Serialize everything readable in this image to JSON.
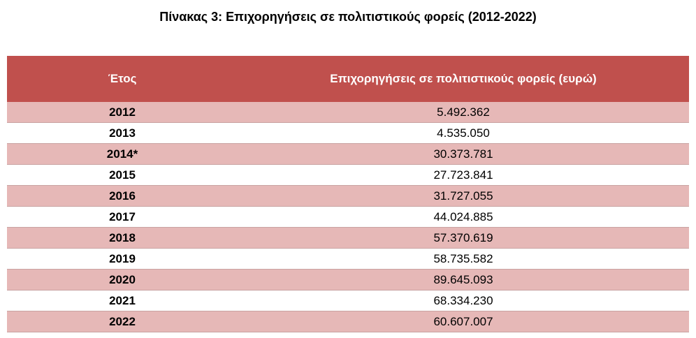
{
  "title": "Πίνακας 3: Επιχορηγήσεις σε πολιτιστικούς φορείς (2012-2022)",
  "table": {
    "header": [
      "Έτος",
      "Επιχορηγήσεις σε πολιτιστικούς φορείς (ευρώ)"
    ],
    "rows": [
      [
        "2012",
        "5.492.362"
      ],
      [
        "2013",
        "4.535.050"
      ],
      [
        "2014*",
        "30.373.781"
      ],
      [
        "2015",
        "27.723.841"
      ],
      [
        "2016",
        "31.727.055"
      ],
      [
        "2017",
        "44.024.885"
      ],
      [
        "2018",
        "57.370.619"
      ],
      [
        "2019",
        "58.735.582"
      ],
      [
        "2020",
        "89.645.093"
      ],
      [
        "2021",
        "68.334.230"
      ],
      [
        "2022",
        "60.607.007"
      ]
    ]
  }
}
